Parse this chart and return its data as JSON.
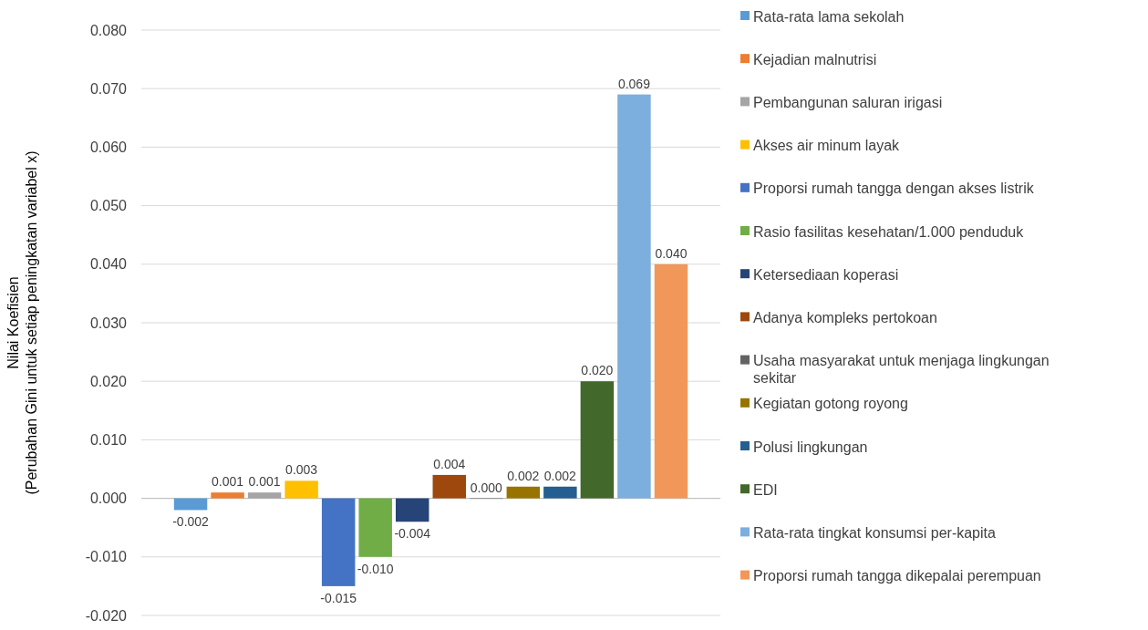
{
  "chart_data": {
    "type": "bar",
    "ylabel": "Nilai Koefisien\n(Perubahan Gini untuk setiap peningkatan variabel x)",
    "categories": [
      null
    ],
    "series": [
      {
        "name": "Rata-rata lama sekolah",
        "color": "#5b9bd5",
        "values": [
          -0.002
        ],
        "value_labels": [
          "-0.002"
        ]
      },
      {
        "name": "Kejadian malnutrisi",
        "color": "#ed7d31",
        "values": [
          0.001
        ],
        "value_labels": [
          "0.001"
        ]
      },
      {
        "name": "Pembangunan saluran irigasi",
        "color": "#a5a5a5",
        "values": [
          0.001
        ],
        "value_labels": [
          "0.001"
        ]
      },
      {
        "name": "Akses air minum layak",
        "color": "#ffc000",
        "values": [
          0.003
        ],
        "value_labels": [
          "0.003"
        ]
      },
      {
        "name": "Proporsi rumah tangga dengan akses listrik",
        "color": "#4472c4",
        "values": [
          -0.015
        ],
        "value_labels": [
          "-0.015"
        ]
      },
      {
        "name": "Rasio fasilitas kesehatan/1.000 penduduk",
        "color": "#70ad47",
        "values": [
          -0.01
        ],
        "value_labels": [
          "-0.010"
        ]
      },
      {
        "name": "Ketersediaan koperasi",
        "color": "#264478",
        "values": [
          -0.004
        ],
        "value_labels": [
          "-0.004"
        ]
      },
      {
        "name": "Adanya kompleks pertokoan",
        "color": "#9e480e",
        "values": [
          0.004
        ],
        "value_labels": [
          "0.004"
        ]
      },
      {
        "name": "Usaha masyarakat untuk menjaga lingkungan sekitar",
        "color": "#636363",
        "values": [
          0.0
        ],
        "value_labels": [
          "0.000"
        ]
      },
      {
        "name": "Kegiatan gotong royong",
        "color": "#997300",
        "values": [
          0.002
        ],
        "value_labels": [
          "0.002"
        ]
      },
      {
        "name": "Polusi lingkungan",
        "color": "#255e91",
        "values": [
          0.002
        ],
        "value_labels": [
          "0.002"
        ]
      },
      {
        "name": "EDI",
        "color": "#43682b",
        "values": [
          0.02
        ],
        "value_labels": [
          "0.020"
        ]
      },
      {
        "name": "Rata-rata tingkat konsumsi per-kapita",
        "color": "#7cafdd",
        "values": [
          0.069
        ],
        "value_labels": [
          "0.069"
        ]
      },
      {
        "name": "Proporsi rumah tangga dikepalai perempuan",
        "color": "#f1975a",
        "values": [
          0.04
        ],
        "value_labels": [
          "0.040"
        ]
      }
    ],
    "ylim": [
      -0.02,
      0.08
    ],
    "yticks": [
      {
        "value": -0.02,
        "label": "-0.020"
      },
      {
        "value": -0.01,
        "label": "-0.010"
      },
      {
        "value": 0,
        "label": "0.000"
      },
      {
        "value": 0.01,
        "label": "0.010"
      },
      {
        "value": 0.02,
        "label": "0.020"
      },
      {
        "value": 0.03,
        "label": "0.030"
      },
      {
        "value": 0.04,
        "label": "0.040"
      },
      {
        "value": 0.05,
        "label": "0.050"
      },
      {
        "value": 0.06,
        "label": "0.060"
      },
      {
        "value": 0.07,
        "label": "0.070"
      },
      {
        "value": 0.08,
        "label": "0.080"
      }
    ],
    "grid": "y",
    "legend": "right"
  }
}
